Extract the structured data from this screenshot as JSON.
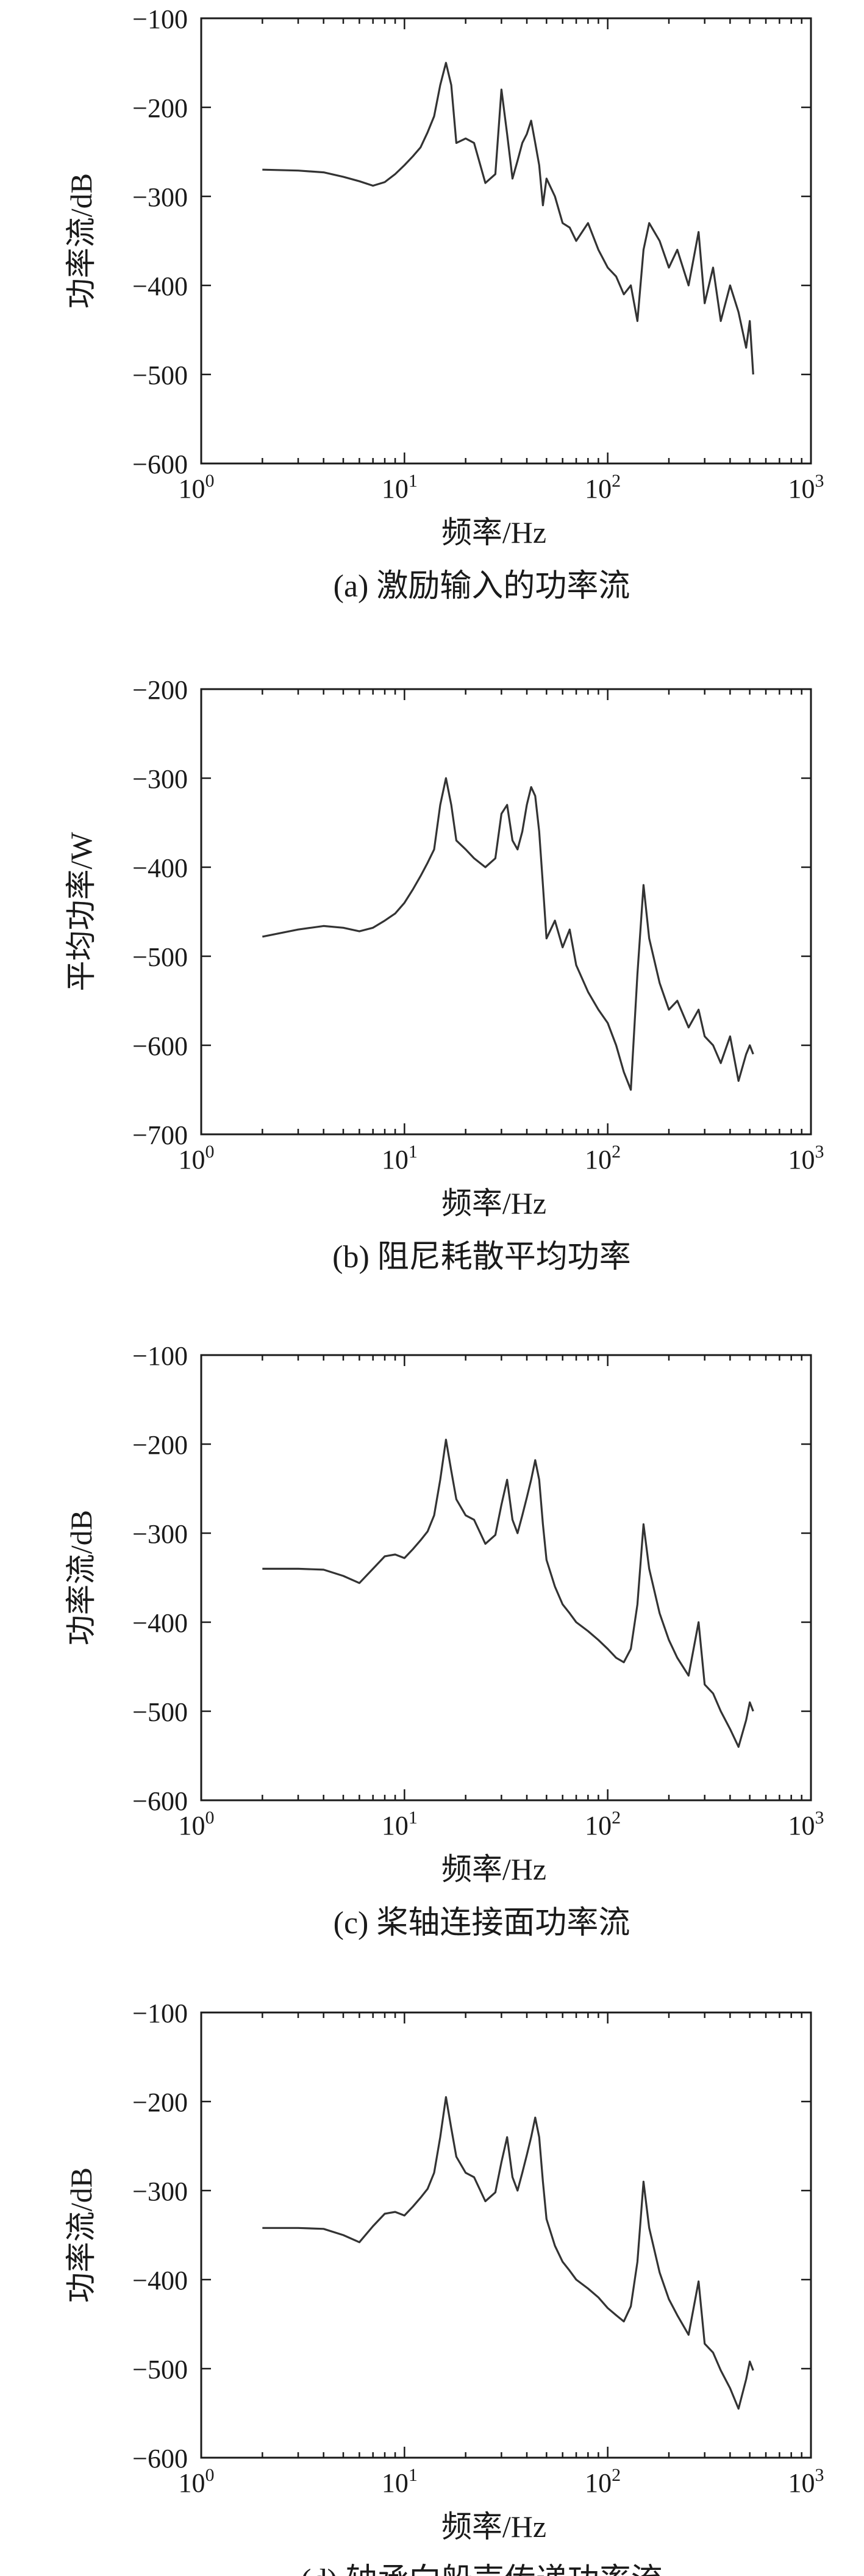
{
  "chart_data": [
    {
      "type": "line",
      "caption": "(a) 激励输入的功率流",
      "xlabel": "频率/Hz",
      "ylabel": "功率流/dB",
      "xscale": "log",
      "xlim": [
        1,
        1000
      ],
      "ylim": [
        -600,
        -100
      ],
      "xticks": [
        {
          "v": 1,
          "b": "10",
          "e": "0"
        },
        {
          "v": 10,
          "b": "10",
          "e": "1"
        },
        {
          "v": 100,
          "b": "10",
          "e": "2"
        },
        {
          "v": 1000,
          "b": "10",
          "e": "3"
        }
      ],
      "yticks": [
        {
          "v": -100,
          "label": "−100"
        },
        {
          "v": -200,
          "label": "−200"
        },
        {
          "v": -300,
          "label": "−300"
        },
        {
          "v": -400,
          "label": "−400"
        },
        {
          "v": -500,
          "label": "−500"
        },
        {
          "v": -600,
          "label": "−600"
        }
      ],
      "series": [
        {
          "name": "激励输入的功率流",
          "x": [
            2,
            3,
            4,
            5,
            6,
            7,
            8,
            9,
            10,
            11,
            12,
            13,
            14,
            15,
            16,
            17,
            18,
            20,
            22,
            25,
            28,
            30,
            32,
            34,
            36,
            38,
            40,
            42,
            44,
            46,
            48,
            50,
            55,
            60,
            65,
            70,
            80,
            90,
            100,
            110,
            120,
            130,
            140,
            150,
            160,
            180,
            200,
            220,
            250,
            280,
            300,
            330,
            360,
            400,
            440,
            480,
            500,
            520
          ],
          "values": [
            -270,
            -271,
            -273,
            -278,
            -283,
            -288,
            -284,
            -275,
            -265,
            -255,
            -245,
            -228,
            -210,
            -175,
            -150,
            -175,
            -240,
            -235,
            -240,
            -285,
            -275,
            -180,
            -230,
            -280,
            -260,
            -240,
            -230,
            -215,
            -240,
            -265,
            -310,
            -280,
            -300,
            -330,
            -335,
            -350,
            -330,
            -360,
            -380,
            -390,
            -410,
            -400,
            -440,
            -360,
            -330,
            -350,
            -380,
            -360,
            -400,
            -340,
            -420,
            -380,
            -440,
            -400,
            -430,
            -470,
            -440,
            -500
          ]
        }
      ]
    },
    {
      "type": "line",
      "caption": "(b) 阻尼耗散平均功率",
      "xlabel": "频率/Hz",
      "ylabel": "平均功率/W",
      "xscale": "log",
      "xlim": [
        1,
        1000
      ],
      "ylim": [
        -700,
        -200
      ],
      "xticks": [
        {
          "v": 1,
          "b": "10",
          "e": "0"
        },
        {
          "v": 10,
          "b": "10",
          "e": "1"
        },
        {
          "v": 100,
          "b": "10",
          "e": "2"
        },
        {
          "v": 1000,
          "b": "10",
          "e": "3"
        }
      ],
      "yticks": [
        {
          "v": -200,
          "label": "−200"
        },
        {
          "v": -300,
          "label": "−300"
        },
        {
          "v": -400,
          "label": "−400"
        },
        {
          "v": -500,
          "label": "−500"
        },
        {
          "v": -600,
          "label": "−600"
        },
        {
          "v": -700,
          "label": "−700"
        }
      ],
      "series": [
        {
          "name": "阻尼耗散平均功率",
          "x": [
            2,
            3,
            4,
            5,
            6,
            7,
            8,
            9,
            10,
            11,
            12,
            13,
            14,
            15,
            16,
            17,
            18,
            20,
            22,
            25,
            28,
            30,
            32,
            34,
            36,
            38,
            40,
            42,
            44,
            46,
            48,
            50,
            55,
            60,
            65,
            70,
            80,
            90,
            100,
            110,
            120,
            130,
            140,
            150,
            160,
            180,
            200,
            220,
            250,
            280,
            300,
            330,
            360,
            400,
            440,
            480,
            500,
            520
          ],
          "values": [
            -478,
            -470,
            -466,
            -468,
            -472,
            -468,
            -460,
            -452,
            -440,
            -425,
            -410,
            -395,
            -380,
            -330,
            -300,
            -330,
            -370,
            -380,
            -390,
            -400,
            -390,
            -340,
            -330,
            -370,
            -380,
            -360,
            -330,
            -310,
            -320,
            -360,
            -420,
            -480,
            -460,
            -490,
            -470,
            -510,
            -540,
            -560,
            -575,
            -600,
            -630,
            -650,
            -520,
            -420,
            -480,
            -530,
            -560,
            -550,
            -580,
            -560,
            -590,
            -600,
            -620,
            -590,
            -640,
            -610,
            -600,
            -610
          ]
        }
      ]
    },
    {
      "type": "line",
      "caption": "(c) 桨轴连接面功率流",
      "xlabel": "频率/Hz",
      "ylabel": "功率流/dB",
      "xscale": "log",
      "xlim": [
        1,
        1000
      ],
      "ylim": [
        -600,
        -100
      ],
      "xticks": [
        {
          "v": 1,
          "b": "10",
          "e": "0"
        },
        {
          "v": 10,
          "b": "10",
          "e": "1"
        },
        {
          "v": 100,
          "b": "10",
          "e": "2"
        },
        {
          "v": 1000,
          "b": "10",
          "e": "3"
        }
      ],
      "yticks": [
        {
          "v": -100,
          "label": "−100"
        },
        {
          "v": -200,
          "label": "−200"
        },
        {
          "v": -300,
          "label": "−300"
        },
        {
          "v": -400,
          "label": "−400"
        },
        {
          "v": -500,
          "label": "−500"
        },
        {
          "v": -600,
          "label": "−600"
        }
      ],
      "series": [
        {
          "name": "桨轴连接面功率流",
          "x": [
            2,
            3,
            4,
            5,
            6,
            7,
            8,
            9,
            10,
            11,
            12,
            13,
            14,
            15,
            16,
            17,
            18,
            20,
            22,
            25,
            28,
            30,
            32,
            34,
            36,
            38,
            40,
            42,
            44,
            46,
            48,
            50,
            55,
            60,
            65,
            70,
            80,
            90,
            100,
            110,
            120,
            130,
            140,
            150,
            160,
            180,
            200,
            220,
            250,
            280,
            300,
            330,
            360,
            400,
            440,
            480,
            500,
            520
          ],
          "values": [
            -340,
            -340,
            -341,
            -348,
            -356,
            -340,
            -326,
            -324,
            -328,
            -318,
            -308,
            -298,
            -280,
            -240,
            -195,
            -230,
            -262,
            -280,
            -285,
            -312,
            -302,
            -268,
            -240,
            -285,
            -300,
            -280,
            -260,
            -240,
            -218,
            -240,
            -290,
            -330,
            -360,
            -380,
            -390,
            -400,
            -410,
            -420,
            -430,
            -440,
            -445,
            -430,
            -380,
            -290,
            -340,
            -390,
            -420,
            -440,
            -460,
            -400,
            -470,
            -480,
            -500,
            -520,
            -540,
            -510,
            -490,
            -500
          ]
        }
      ]
    },
    {
      "type": "line",
      "caption": "(d) 轴承向船壳传递功率流",
      "xlabel": "频率/Hz",
      "ylabel": "功率流/dB",
      "xscale": "log",
      "xlim": [
        1,
        1000
      ],
      "ylim": [
        -600,
        -100
      ],
      "xticks": [
        {
          "v": 1,
          "b": "10",
          "e": "0"
        },
        {
          "v": 10,
          "b": "10",
          "e": "1"
        },
        {
          "v": 100,
          "b": "10",
          "e": "2"
        },
        {
          "v": 1000,
          "b": "10",
          "e": "3"
        }
      ],
      "yticks": [
        {
          "v": -100,
          "label": "−100"
        },
        {
          "v": -200,
          "label": "−200"
        },
        {
          "v": -300,
          "label": "−300"
        },
        {
          "v": -400,
          "label": "−400"
        },
        {
          "v": -500,
          "label": "−500"
        },
        {
          "v": -600,
          "label": "−600"
        }
      ],
      "series": [
        {
          "name": "轴承向船壳传递功率流",
          "x": [
            2,
            3,
            4,
            5,
            6,
            7,
            8,
            9,
            10,
            11,
            12,
            13,
            14,
            15,
            16,
            17,
            18,
            20,
            22,
            25,
            28,
            30,
            32,
            34,
            36,
            38,
            40,
            42,
            44,
            46,
            48,
            50,
            55,
            60,
            65,
            70,
            80,
            90,
            100,
            110,
            120,
            130,
            140,
            150,
            160,
            180,
            200,
            220,
            250,
            280,
            300,
            330,
            360,
            400,
            440,
            480,
            500,
            520
          ],
          "values": [
            -342,
            -342,
            -343,
            -350,
            -358,
            -340,
            -326,
            -324,
            -328,
            -318,
            -308,
            -298,
            -280,
            -240,
            -195,
            -230,
            -262,
            -280,
            -285,
            -312,
            -302,
            -268,
            -240,
            -285,
            -300,
            -280,
            -260,
            -240,
            -218,
            -240,
            -290,
            -332,
            -362,
            -380,
            -390,
            -400,
            -410,
            -420,
            -432,
            -440,
            -447,
            -430,
            -380,
            -290,
            -342,
            -392,
            -422,
            -440,
            -462,
            -402,
            -472,
            -482,
            -502,
            -522,
            -545,
            -512,
            -492,
            -502
          ]
        }
      ]
    }
  ]
}
